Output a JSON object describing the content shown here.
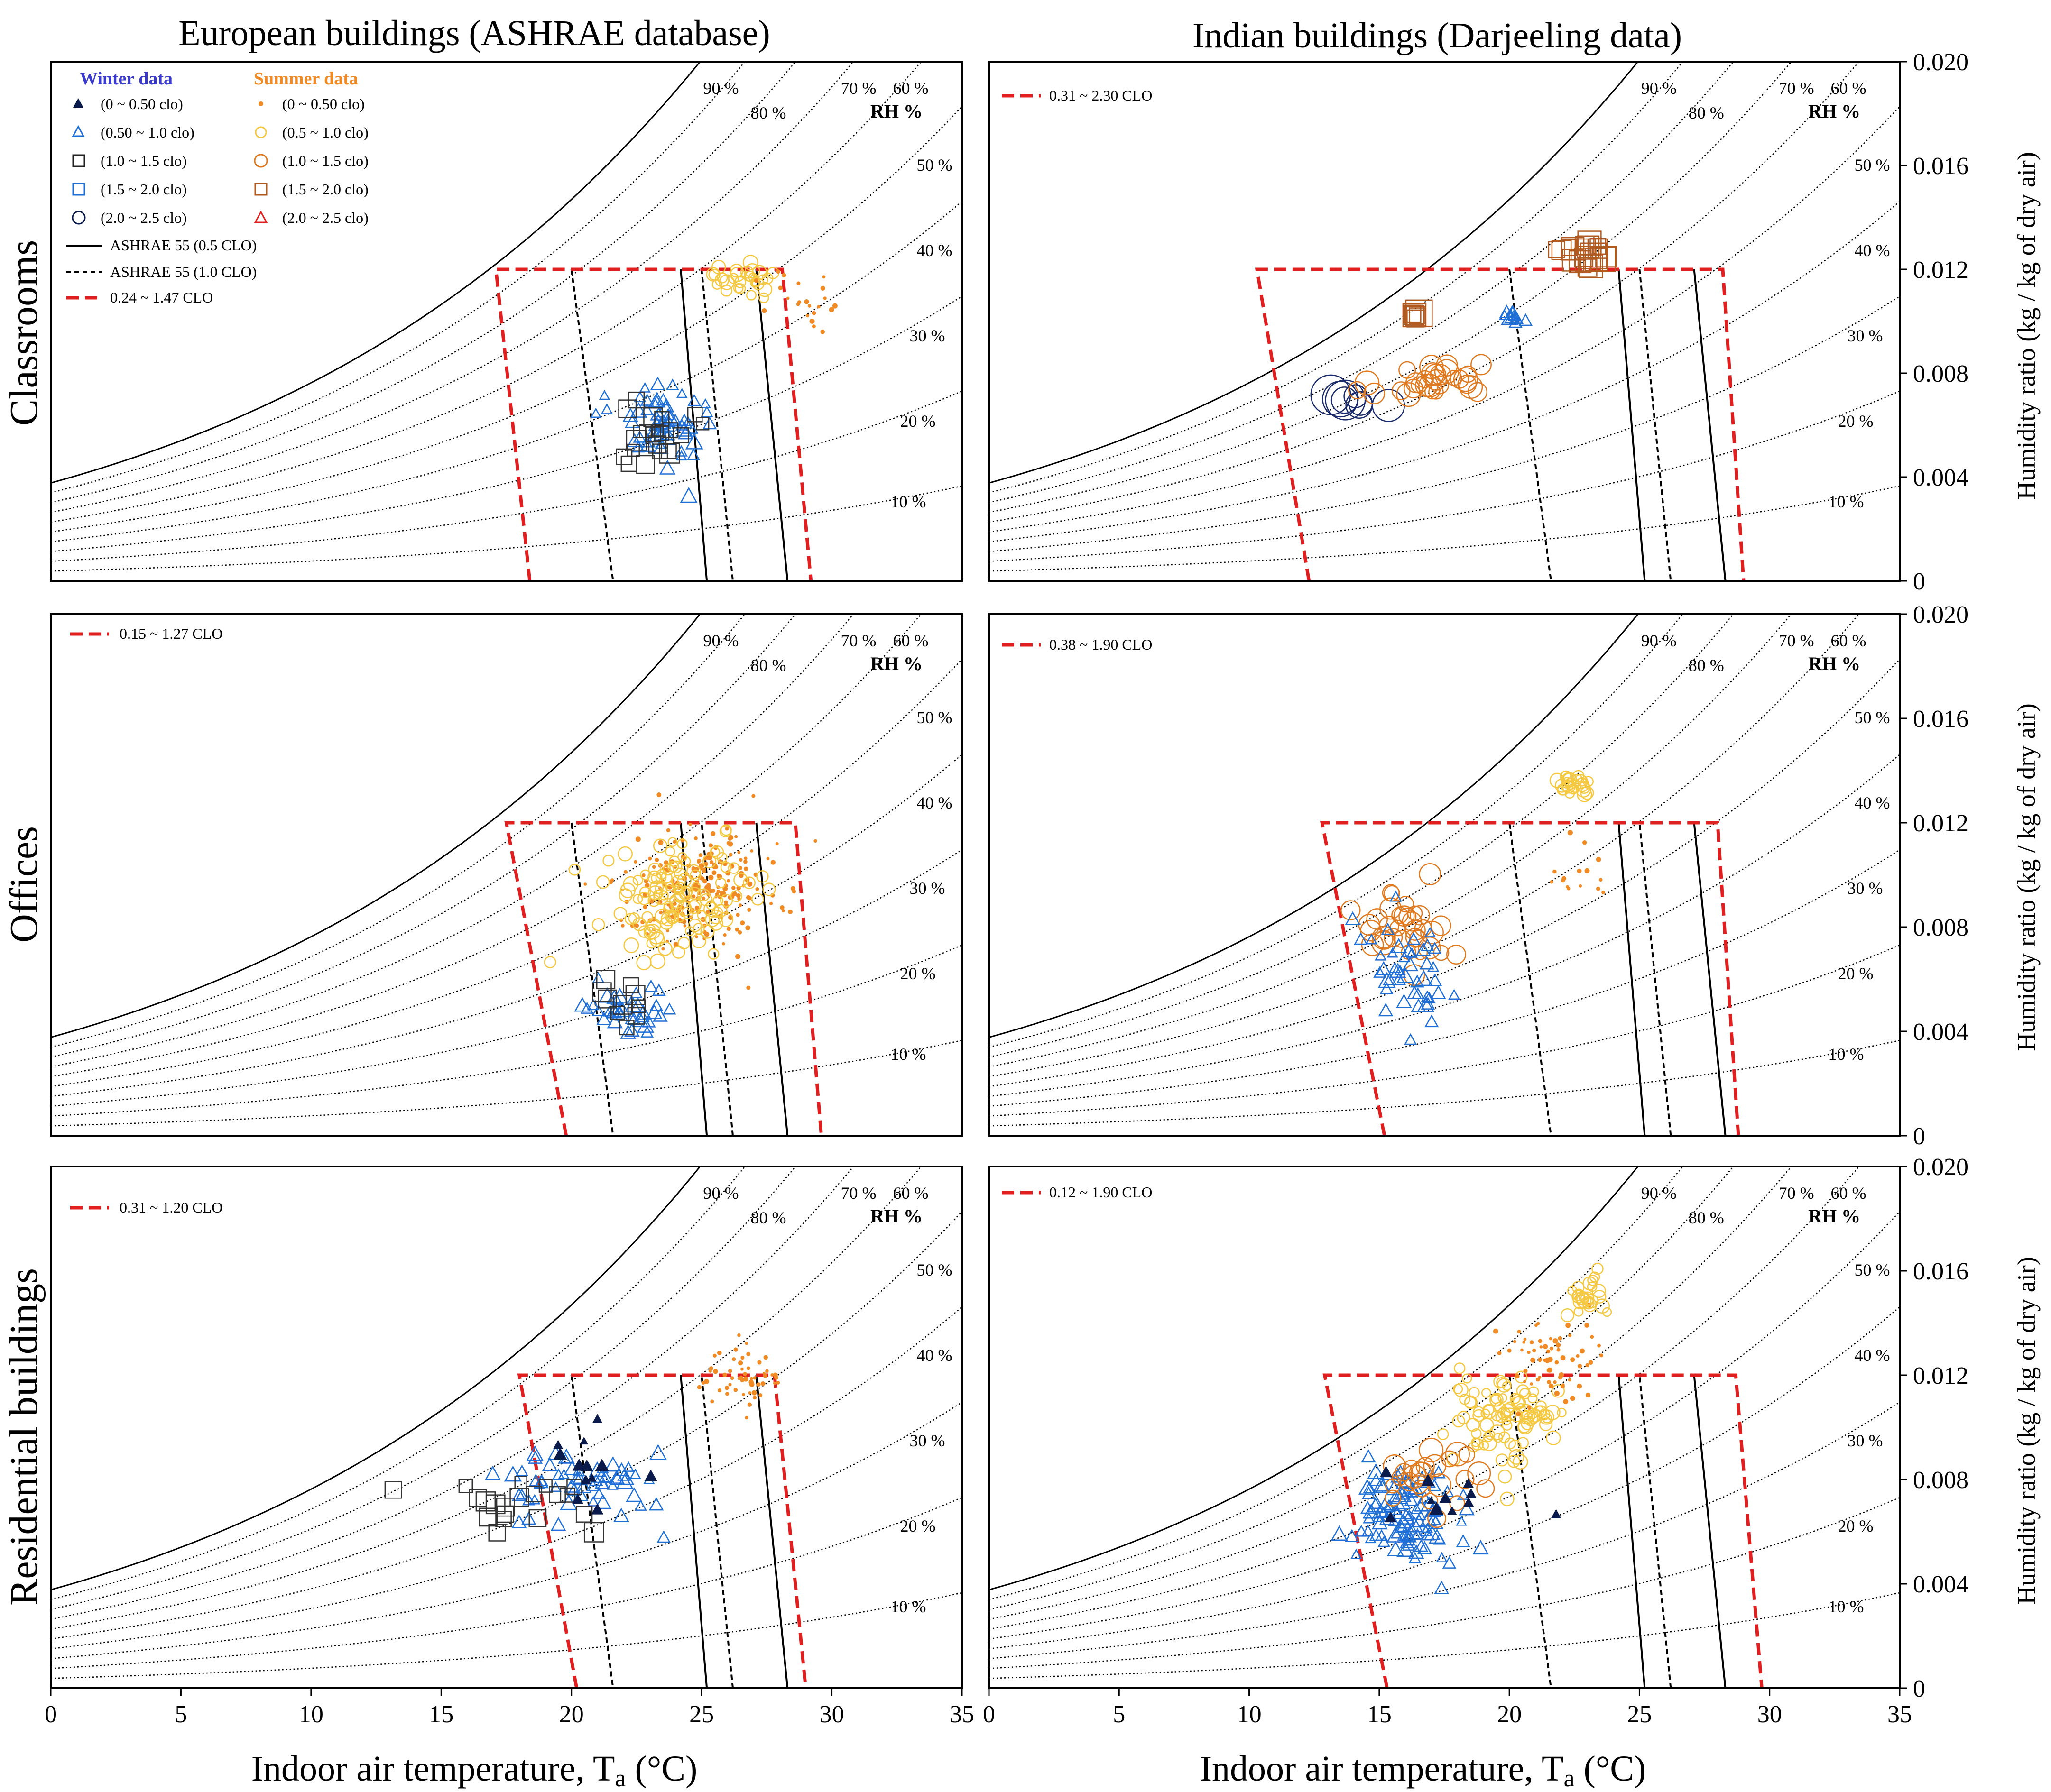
{
  "titles": {
    "left_column": "European buildings (ASHRAE database)",
    "right_column": "Indian buildings (Darjeeling data)"
  },
  "row_labels": [
    "Classrooms",
    "Offices",
    "Residential buildings"
  ],
  "axes": {
    "xlabel": "Indoor air temperature, T",
    "xlabel_sub": "a",
    "xlabel_unit": " (°C)",
    "ylabel": "Humidity ratio (kg / kg of dry air)",
    "x_ticks": [
      "0",
      "5",
      "10",
      "15",
      "20",
      "25",
      "30",
      "35"
    ],
    "y_ticks": [
      "0",
      "0.004",
      "0.008",
      "0.012",
      "0.016",
      "0.020"
    ]
  },
  "rh": {
    "header": "RH %",
    "labels": [
      "90 %",
      "80 %",
      "70 %",
      "60 %",
      "50 %",
      "40 %",
      "30 %",
      "20 %",
      "10 %"
    ]
  },
  "legend": {
    "winter_title": "Winter data",
    "summer_title": "Summer data",
    "winter_items": [
      "(0 ~ 0.50 clo)",
      "(0.50 ~ 1.0 clo)",
      "(1.0 ~ 1.5 clo)",
      "(1.5 ~ 2.0 clo)",
      "(2.0 ~ 2.5 clo)"
    ],
    "summer_items": [
      "(0 ~ 0.50 clo)",
      "(0.5 ~ 1.0 clo)",
      "(1.0 ~ 1.5 clo)",
      "(1.5 ~ 2.0 clo)",
      "(2.0 ~ 2.5 clo)"
    ],
    "line_items": [
      "ASHRAE 55 (0.5 CLO)",
      "ASHRAE 55 (1.0 CLO)",
      "0.24   ~ 1.47 CLO"
    ]
  },
  "panel_clo_labels": {
    "eu_offices": "0.15 ~ 1.27 CLO",
    "eu_residential": "0.31 ~ 1.20 CLO",
    "in_classrooms": "0.31 ~ 2.30 CLO",
    "in_offices": "0.38 ~ 1.90 CLO",
    "in_residential": "0.12 ~ 1.90 CLO"
  },
  "colors": {
    "winter_title": "#3a3acc",
    "summer_title": "#f08a24",
    "adaptive_zone": "#e02020",
    "winter_light": "#1f6fd6",
    "winter_dark": "#0a1a4a",
    "summer_light": "#f5b400",
    "summer_orange": "#e07a20",
    "summer_brown": "#b05a20"
  },
  "chart_data": [
    {
      "panel": "European - Classrooms",
      "type": "scatter",
      "xlim": [
        0,
        35
      ],
      "ylim": [
        0,
        0.02
      ],
      "adaptive_zone": {
        "bottom_x": [
          18.4,
          29.2
        ],
        "top_x": [
          17.1,
          28.1
        ],
        "top_y": 0.012
      },
      "clusters": [
        {
          "series": "winter 0.50-1.0 clo",
          "x": 23.5,
          "y": 0.006,
          "sx": 1.3,
          "sy": 0.0013,
          "n": 60
        },
        {
          "series": "winter 1.0-1.5 clo",
          "x": 23.0,
          "y": 0.0055,
          "sx": 1.2,
          "sy": 0.0012,
          "n": 22
        },
        {
          "series": "summer 0.5-1.0 clo",
          "x": 26.5,
          "y": 0.0115,
          "sx": 1.2,
          "sy": 0.0007,
          "n": 30
        },
        {
          "series": "summer 0-0.50 clo",
          "x": 29.0,
          "y": 0.0108,
          "sx": 1.5,
          "sy": 0.0012,
          "n": 22
        }
      ]
    },
    {
      "panel": "European - Offices",
      "type": "scatter",
      "xlim": [
        0,
        35
      ],
      "ylim": [
        0,
        0.02
      ],
      "adaptive_zone": {
        "bottom_x": [
          19.8,
          29.6
        ],
        "top_x": [
          17.5,
          28.6
        ],
        "top_y": 0.012
      },
      "clusters": [
        {
          "series": "summer 0-0.50 clo",
          "x": 25.0,
          "y": 0.0095,
          "sx": 2.4,
          "sy": 0.0018,
          "n": 240
        },
        {
          "series": "summer 0.5-1.0 clo",
          "x": 24.0,
          "y": 0.009,
          "sx": 2.4,
          "sy": 0.0018,
          "n": 120
        },
        {
          "series": "winter 0.50-1.0 clo",
          "x": 22.0,
          "y": 0.0048,
          "sx": 1.3,
          "sy": 0.0008,
          "n": 38
        },
        {
          "series": "winter 1.0-1.5 clo",
          "x": 22.2,
          "y": 0.005,
          "sx": 1.0,
          "sy": 0.0009,
          "n": 10
        }
      ]
    },
    {
      "panel": "European - Residential",
      "type": "scatter",
      "xlim": [
        0,
        35
      ],
      "ylim": [
        0,
        0.02
      ],
      "adaptive_zone": {
        "bottom_x": [
          20.2,
          29.0
        ],
        "top_x": [
          18.0,
          27.8
        ],
        "top_y": 0.012
      },
      "clusters": [
        {
          "series": "winter 0.50-1.0 clo",
          "x": 20.5,
          "y": 0.008,
          "sx": 2.5,
          "sy": 0.0014,
          "n": 60
        },
        {
          "series": "winter 1.0-1.5 clo",
          "x": 18.0,
          "y": 0.007,
          "sx": 2.5,
          "sy": 0.001,
          "n": 20
        },
        {
          "series": "winter 0-0.50 clo",
          "x": 21.0,
          "y": 0.0085,
          "sx": 1.8,
          "sy": 0.0012,
          "n": 12
        },
        {
          "series": "summer 0-0.50 clo",
          "x": 26.5,
          "y": 0.012,
          "sx": 1.4,
          "sy": 0.001,
          "n": 55
        }
      ]
    },
    {
      "panel": "Indian - Classrooms",
      "type": "scatter",
      "xlim": [
        0,
        35
      ],
      "ylim": [
        0,
        0.02
      ],
      "adaptive_zone": {
        "bottom_x": [
          12.3,
          29.0
        ],
        "top_x": [
          10.3,
          28.2
        ],
        "top_y": 0.012
      },
      "clusters": [
        {
          "series": "winter 2.0-2.5 clo",
          "x": 13.8,
          "y": 0.007,
          "sx": 1.0,
          "sy": 0.0003,
          "n": 8
        },
        {
          "series": "winter 0.50-1.0 clo",
          "x": 20.2,
          "y": 0.0102,
          "sx": 0.3,
          "sy": 0.0002,
          "n": 12
        },
        {
          "series": "summer 1.0-1.5 clo",
          "x": 17.0,
          "y": 0.0076,
          "sx": 2.0,
          "sy": 0.0005,
          "n": 30
        },
        {
          "series": "summer 1.5-2.0 clo",
          "x": 23.0,
          "y": 0.0125,
          "sx": 0.7,
          "sy": 0.0004,
          "n": 20
        },
        {
          "series": "summer 1.5-2.0 clo",
          "x": 16.4,
          "y": 0.0102,
          "sx": 0.2,
          "sy": 0.0002,
          "n": 8
        }
      ]
    },
    {
      "panel": "Indian - Offices",
      "type": "scatter",
      "xlim": [
        0,
        35
      ],
      "ylim": [
        0,
        0.02
      ],
      "adaptive_zone": {
        "bottom_x": [
          15.2,
          28.8
        ],
        "top_x": [
          12.8,
          28.0
        ],
        "top_y": 0.012
      },
      "clusters": [
        {
          "series": "summer 0.5-1.0 clo",
          "x": 22.5,
          "y": 0.0136,
          "sx": 0.6,
          "sy": 0.0005,
          "n": 25
        },
        {
          "series": "summer 1.0-1.5 clo",
          "x": 16.0,
          "y": 0.0078,
          "sx": 1.2,
          "sy": 0.0012,
          "n": 35
        },
        {
          "series": "winter 0.50-1.0 clo",
          "x": 16.0,
          "y": 0.0062,
          "sx": 1.5,
          "sy": 0.0015,
          "n": 45
        },
        {
          "series": "summer 0-0.50 clo",
          "x": 22.5,
          "y": 0.01,
          "sx": 1.2,
          "sy": 0.001,
          "n": 15
        }
      ]
    },
    {
      "panel": "Indian - Residential",
      "type": "scatter",
      "xlim": [
        0,
        35
      ],
      "ylim": [
        0,
        0.02
      ],
      "adaptive_zone": {
        "bottom_x": [
          15.3,
          29.7
        ],
        "top_x": [
          12.9,
          28.7
        ],
        "top_y": 0.012
      },
      "clusters": [
        {
          "series": "winter 0.50-1.0 clo",
          "x": 16.0,
          "y": 0.0068,
          "sx": 1.8,
          "sy": 0.0015,
          "n": 110
        },
        {
          "series": "summer 0.5-1.0 clo",
          "x": 20.0,
          "y": 0.0105,
          "sx": 2.0,
          "sy": 0.0015,
          "n": 90
        },
        {
          "series": "summer 0-0.50 clo",
          "x": 21.5,
          "y": 0.0125,
          "sx": 1.8,
          "sy": 0.0015,
          "n": 70
        },
        {
          "series": "summer 0.5-1.0 clo",
          "x": 23.0,
          "y": 0.015,
          "sx": 0.5,
          "sy": 0.0008,
          "n": 25
        },
        {
          "series": "summer 1.0-1.5 clo",
          "x": 17.0,
          "y": 0.008,
          "sx": 1.8,
          "sy": 0.001,
          "n": 25
        },
        {
          "series": "winter 0-0.50 clo",
          "x": 17.5,
          "y": 0.0075,
          "sx": 2.0,
          "sy": 0.0012,
          "n": 12
        }
      ]
    }
  ]
}
